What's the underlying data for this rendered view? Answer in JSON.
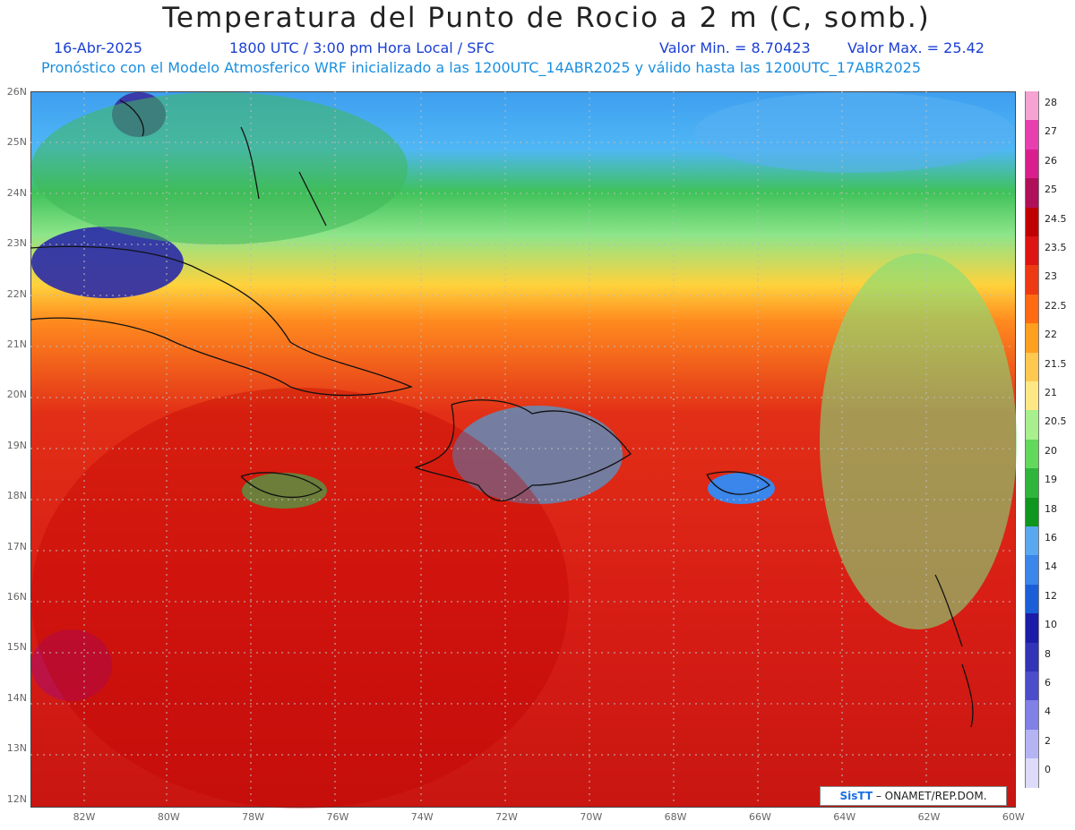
{
  "title": "Temperatura del Punto de Rocio a 2 m (C, somb.)",
  "header": {
    "date": "16-Abr-2025",
    "time": "1800 UTC / 3:00 pm Hora Local / SFC",
    "min": "Valor Min. = 8.70423",
    "max": "Valor Max. = 25.42"
  },
  "subtitle": "Pronóstico con el Modelo Atmosferico WRF inicializado a las 1200UTC_14ABR2025 y válido hasta las  1200UTC_17ABR2025",
  "y_ticks": [
    "26N",
    "25N",
    "24N",
    "23N",
    "22N",
    "21N",
    "20N",
    "19N",
    "18N",
    "17N",
    "16N",
    "15N",
    "14N",
    "13N",
    "12N"
  ],
  "x_ticks": [
    "82W",
    "80W",
    "78W",
    "76W",
    "74W",
    "72W",
    "70W",
    "68W",
    "66W",
    "64W",
    "62W",
    "60W"
  ],
  "colorbar": {
    "labels": [
      "28",
      "27",
      "26",
      "25",
      "24.5",
      "23.5",
      "23",
      "22.5",
      "22",
      "21.5",
      "21",
      "20.5",
      "20",
      "19",
      "18",
      "16",
      "14",
      "12",
      "10",
      "8",
      "6",
      "4",
      "2",
      "0"
    ],
    "colors": [
      "#f4a3d3",
      "#e83fb0",
      "#d91f8e",
      "#b0105a",
      "#c00000",
      "#dc1414",
      "#ee3a12",
      "#ff6a12",
      "#ff9f20",
      "#ffc850",
      "#ffe786",
      "#a8f08e",
      "#63d95c",
      "#2fb43c",
      "#0f961e",
      "#5aa8f0",
      "#3a86ea",
      "#1a5fd8",
      "#1c1ca8",
      "#3333b8",
      "#4d4dcc",
      "#8080e6",
      "#b4b4f4",
      "#dcdcfa"
    ]
  },
  "credit": {
    "logo": "SisTT",
    "text": "– ONAMET/REP.DOM."
  }
}
